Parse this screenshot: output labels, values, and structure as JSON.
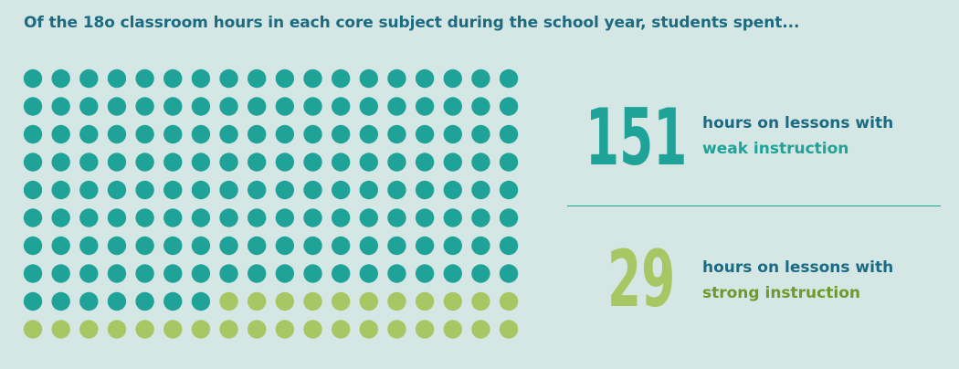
{
  "headline": "Of the 18o classroom hours in each core subject during the school year, students spent...",
  "colors": {
    "background": "#d4e7e4",
    "headline": "#1c6b82",
    "weak": "#1fa298",
    "strong": "#a6c764",
    "label_text": "#1c6b82",
    "weak_label": "#1fa298",
    "strong_label": "#6e9a2c",
    "divider": "#1fa298"
  },
  "chart_data": {
    "type": "unit-dot-chart",
    "total_hours": 180,
    "dots_per_row": 18,
    "rows": 10,
    "series": [
      {
        "name": "weak instruction",
        "value": 151,
        "color": "#1fa298"
      },
      {
        "name": "strong instruction",
        "value": 29,
        "color": "#a6c764"
      }
    ]
  },
  "stats": [
    {
      "number": "151",
      "line1": "hours on lessons with",
      "line2": "weak instruction"
    },
    {
      "number": "29",
      "line1": "hours on lessons with",
      "line2": "strong instruction"
    }
  ]
}
